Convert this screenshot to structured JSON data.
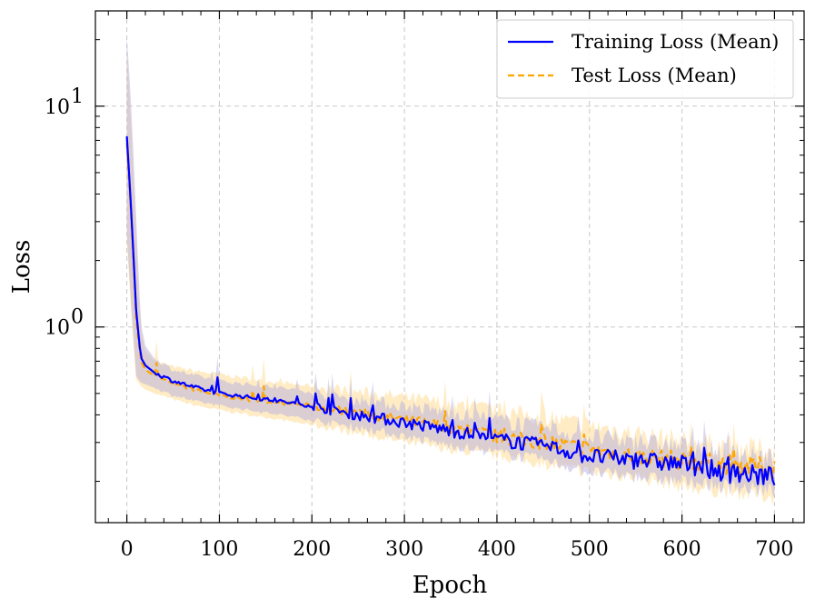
{
  "chart_data": {
    "type": "line",
    "title": "",
    "xlabel": "Epoch",
    "ylabel": "Loss",
    "yscale": "log",
    "xlim": [
      -34,
      732
    ],
    "ylim": [
      0.13,
      27
    ],
    "grid": true,
    "x_ticks": [
      0,
      100,
      200,
      300,
      400,
      500,
      600,
      700
    ],
    "x_tick_labels": [
      "0",
      "100",
      "200",
      "300",
      "400",
      "500",
      "600",
      "700"
    ],
    "y_ticks": [
      {
        "value": 1,
        "base": "10",
        "exp": "0"
      },
      {
        "value": 10,
        "base": "10",
        "exp": "1"
      }
    ],
    "legend": {
      "position": "top-right"
    },
    "series": [
      {
        "name": "Training Loss (Mean)",
        "color": "#0000ff",
        "style": "solid",
        "band_color": "#b7b0e0",
        "x": [
          0,
          5,
          10,
          15,
          20,
          30,
          50,
          75,
          100,
          150,
          200,
          250,
          300,
          350,
          400,
          450,
          500,
          550,
          600,
          650,
          700
        ],
        "mean": [
          7.3,
          3.2,
          1.2,
          0.73,
          0.67,
          0.62,
          0.57,
          0.53,
          0.5,
          0.47,
          0.44,
          0.4,
          0.37,
          0.34,
          0.31,
          0.29,
          0.26,
          0.25,
          0.24,
          0.22,
          0.21
        ],
        "upper": [
          21,
          9.5,
          3.2,
          1.05,
          0.82,
          0.72,
          0.64,
          0.6,
          0.57,
          0.54,
          0.51,
          0.47,
          0.44,
          0.41,
          0.38,
          0.35,
          0.32,
          0.3,
          0.29,
          0.27,
          0.25
        ],
        "lower": [
          2.6,
          1.2,
          0.6,
          0.56,
          0.55,
          0.53,
          0.49,
          0.46,
          0.44,
          0.41,
          0.38,
          0.35,
          0.32,
          0.29,
          0.27,
          0.25,
          0.22,
          0.21,
          0.2,
          0.19,
          0.18
        ]
      },
      {
        "name": "Test Loss (Mean)",
        "color": "#ffa500",
        "style": "dashed",
        "band_color": "#ffdc96",
        "x": [
          0,
          5,
          10,
          15,
          20,
          30,
          50,
          75,
          100,
          150,
          200,
          250,
          300,
          350,
          400,
          450,
          500,
          550,
          600,
          650,
          700
        ],
        "mean": [
          6.8,
          3.0,
          1.1,
          0.7,
          0.64,
          0.6,
          0.55,
          0.52,
          0.49,
          0.46,
          0.44,
          0.41,
          0.38,
          0.35,
          0.32,
          0.3,
          0.28,
          0.26,
          0.25,
          0.24,
          0.23
        ],
        "upper": [
          18,
          8.0,
          2.8,
          0.98,
          0.78,
          0.7,
          0.66,
          0.63,
          0.61,
          0.57,
          0.54,
          0.51,
          0.48,
          0.45,
          0.42,
          0.39,
          0.36,
          0.33,
          0.31,
          0.29,
          0.28
        ],
        "lower": [
          2.4,
          1.1,
          0.58,
          0.54,
          0.52,
          0.5,
          0.47,
          0.44,
          0.42,
          0.39,
          0.36,
          0.33,
          0.3,
          0.28,
          0.26,
          0.24,
          0.22,
          0.21,
          0.19,
          0.18,
          0.17
        ]
      }
    ]
  }
}
